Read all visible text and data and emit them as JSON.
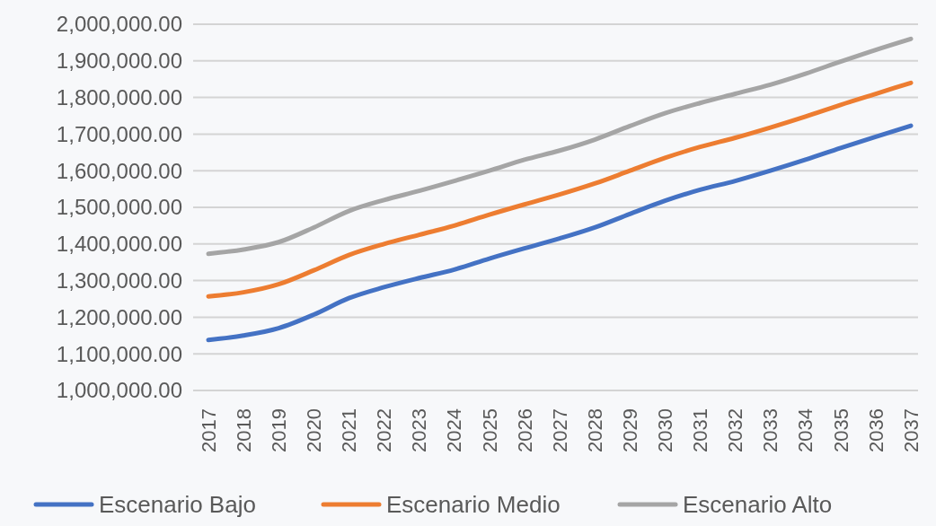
{
  "chart_data": {
    "type": "line",
    "categories": [
      "2017",
      "2018",
      "2019",
      "2020",
      "2021",
      "2022",
      "2023",
      "2024",
      "2025",
      "2026",
      "2027",
      "2028",
      "2029",
      "2030",
      "2031",
      "2032",
      "2033",
      "2034",
      "2035",
      "2036",
      "2037"
    ],
    "series": [
      {
        "name": "Escenario Bajo",
        "color": "#4472c4",
        "values": [
          1138000,
          1150000,
          1170000,
          1207000,
          1252000,
          1282000,
          1307000,
          1330000,
          1360000,
          1388000,
          1415000,
          1445000,
          1482000,
          1518000,
          1548000,
          1572000,
          1600000,
          1630000,
          1662000,
          1693000,
          1723000
        ]
      },
      {
        "name": "Escenario Medio",
        "color": "#ed7d31",
        "values": [
          1257000,
          1268000,
          1290000,
          1328000,
          1370000,
          1400000,
          1425000,
          1450000,
          1480000,
          1508000,
          1535000,
          1565000,
          1600000,
          1635000,
          1665000,
          1690000,
          1718000,
          1748000,
          1780000,
          1810000,
          1840000
        ]
      },
      {
        "name": "Escenario Alto",
        "color": "#a5a5a5",
        "values": [
          1373000,
          1385000,
          1405000,
          1445000,
          1490000,
          1520000,
          1545000,
          1572000,
          1600000,
          1630000,
          1655000,
          1685000,
          1722000,
          1757000,
          1785000,
          1810000,
          1835000,
          1865000,
          1898000,
          1930000,
          1960000
        ]
      }
    ],
    "ylim": [
      1000000,
      2000000
    ],
    "yticks": [
      {
        "value": 1000000,
        "label": "1,000,000.00"
      },
      {
        "value": 1100000,
        "label": "1,100,000.00"
      },
      {
        "value": 1200000,
        "label": "1,200,000.00"
      },
      {
        "value": 1300000,
        "label": "1,300,000.00"
      },
      {
        "value": 1400000,
        "label": "1,400,000.00"
      },
      {
        "value": 1500000,
        "label": "1,500,000.00"
      },
      {
        "value": 1600000,
        "label": "1,600,000.00"
      },
      {
        "value": 1700000,
        "label": "1,700,000.00"
      },
      {
        "value": 1800000,
        "label": "1,800,000.00"
      },
      {
        "value": 1900000,
        "label": "1,900,000.00"
      },
      {
        "value": 2000000,
        "label": "2,000,000.00"
      }
    ],
    "grid": "y",
    "legend": "bottom",
    "marker": "none",
    "line_style": "solid"
  }
}
